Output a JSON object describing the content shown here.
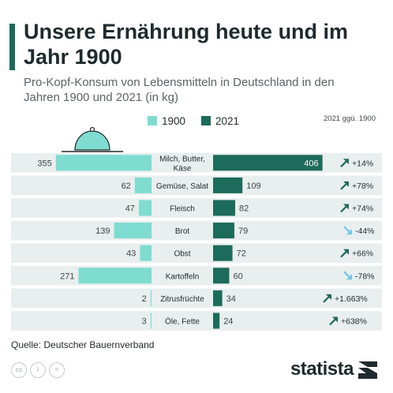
{
  "header": {
    "title": "Unsere Ernährung heute und im Jahr 1900",
    "subtitle": "Pro-Kopf-Konsum von Lebensmitteln in Deutschland in den Jahren 1900 und 2021 (in kg)"
  },
  "legend": {
    "series_1900": "1900",
    "series_2021": "2021",
    "change_header": "2021 ggü. 1900"
  },
  "colors": {
    "series_1900": "#7fdcd0",
    "series_2021": "#1d6b5a",
    "up_arrow": "#1d6b5a",
    "down_arrow": "#6fc6e8",
    "row_band": "#e9eeef",
    "accent": "#1d6b5a"
  },
  "chart_data": {
    "type": "bar",
    "categories": [
      "Milch, Butter, Käse",
      "Gemüse, Salat",
      "Fleisch",
      "Brot",
      "Obst",
      "Kartoffeln",
      "Zitrusfrüchte",
      "Öle, Fette"
    ],
    "series": [
      {
        "name": "1900",
        "values": [
          355,
          62,
          47,
          139,
          43,
          271,
          2,
          3
        ]
      },
      {
        "name": "2021",
        "values": [
          406,
          109,
          82,
          79,
          72,
          60,
          34,
          24
        ]
      }
    ],
    "change_labels": [
      "+14%",
      "+78%",
      "+74%",
      "-44%",
      "+66%",
      "-78%",
      "+1.663%",
      "+638%"
    ],
    "change_direction": [
      "up",
      "up",
      "up",
      "down",
      "up",
      "down",
      "up",
      "up"
    ],
    "value_labels_1900": [
      "355",
      "62",
      "47",
      "139",
      "43",
      "271",
      "2",
      "3"
    ],
    "value_labels_2021": [
      "406",
      "109",
      "82",
      "79",
      "72",
      "60",
      "34",
      "24"
    ]
  },
  "footer": {
    "source": "Quelle: Deutscher Bauernverband",
    "brand": "statista"
  },
  "icons": [
    "cloche-icon",
    "cc-icon",
    "person-icon",
    "equals-icon",
    "statista-logo-icon"
  ]
}
